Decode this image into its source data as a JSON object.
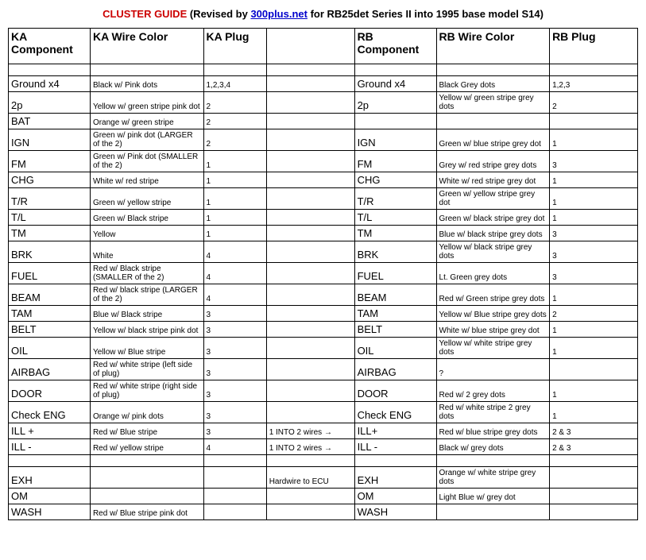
{
  "title": {
    "main": "CLUSTER GUIDE",
    "rev_prefix": " (Revised by ",
    "link": "300plus.net",
    "rev_suffix": " for RB25det Series II into 1995 base model S14)"
  },
  "columns": [
    "KA Component",
    "KA Wire Color",
    "KA Plug",
    "",
    "RB Component",
    "RB Wire Color",
    "RB Plug"
  ],
  "rows": [
    {
      "type": "spacer"
    },
    {
      "cells": [
        "Ground x4",
        "Black w/ Pink dots",
        "1,2,3,4",
        "",
        "Ground x4",
        "Black Grey dots",
        "1,2,3"
      ]
    },
    {
      "cells": [
        "2p",
        "Yellow w/ green stripe pink dot",
        "2",
        "",
        "2p",
        "Yellow w/ green stripe grey dots",
        "2"
      ]
    },
    {
      "cells": [
        "BAT",
        "Orange w/ green stripe",
        "2",
        "",
        "",
        "",
        ""
      ]
    },
    {
      "cells": [
        "IGN",
        "Green w/ pink dot (LARGER of the 2)",
        "2",
        "",
        "IGN",
        "Green w/ blue stripe grey dot",
        "1"
      ]
    },
    {
      "cells": [
        "FM",
        "Green w/ Pink dot (SMALLER of the 2)",
        "1",
        "",
        "FM",
        "Grey w/ red stripe grey dots",
        "3"
      ]
    },
    {
      "cells": [
        "CHG",
        "White w/ red stripe",
        "1",
        "",
        "CHG",
        "White w/ red stripe grey dot",
        "1"
      ]
    },
    {
      "cells": [
        "T/R",
        "Green w/ yellow stripe",
        "1",
        "",
        "T/R",
        "Green w/ yellow stripe grey dot",
        "1"
      ]
    },
    {
      "cells": [
        "T/L",
        "Green w/ Black stripe",
        "1",
        "",
        "T/L",
        "Green w/ black stripe grey dot",
        "1"
      ]
    },
    {
      "cells": [
        "TM",
        "Yellow",
        "1",
        "",
        "TM",
        "Blue w/ black stripe grey dots",
        "3"
      ]
    },
    {
      "cells": [
        "BRK",
        "White",
        "4",
        "",
        "BRK",
        "Yellow w/ black stripe grey dots",
        "3"
      ]
    },
    {
      "cells": [
        "FUEL",
        "Red w/ Black stripe (SMALLER of the 2)",
        "4",
        "",
        "FUEL",
        "Lt. Green grey dots",
        "3"
      ]
    },
    {
      "cells": [
        "BEAM",
        "Red w/ black stripe (LARGER of the 2)",
        "4",
        "",
        "BEAM",
        "Red w/ Green stripe grey dots",
        "1"
      ]
    },
    {
      "cells": [
        "TAM",
        "Blue w/ Black stripe",
        "3",
        "",
        "TAM",
        "Yellow w/ Blue stripe grey dots",
        "2"
      ]
    },
    {
      "cells": [
        "BELT",
        "Yellow w/ black stripe pink dot",
        "3",
        "",
        "BELT",
        "White w/ blue stripe grey dot",
        "1"
      ]
    },
    {
      "cells": [
        "OIL",
        "Yellow w/ Blue stripe",
        "3",
        "",
        "OIL",
        "Yellow w/ white stripe grey dots",
        "1"
      ]
    },
    {
      "cells": [
        "AIRBAG",
        "Red w/ white stripe (left side of plug)",
        "3",
        "",
        "AIRBAG",
        "?",
        ""
      ]
    },
    {
      "cells": [
        "DOOR",
        "Red w/ white stripe (right side of plug)",
        "3",
        "",
        "DOOR",
        "Red w/ 2 grey dots",
        "1"
      ]
    },
    {
      "cells": [
        "Check ENG",
        "Orange w/ pink dots",
        "3",
        "",
        "Check ENG",
        "Red w/ white stripe 2 grey dots",
        "1"
      ]
    },
    {
      "cells": [
        "ILL +",
        "Red w/ Blue stripe",
        "3",
        "1 INTO 2 wires →",
        "ILL+",
        "Red w/ blue stripe grey dots",
        "2 & 3"
      ]
    },
    {
      "cells": [
        "ILL -",
        "Red w/ yellow stripe",
        "4",
        "1 INTO 2 wires →",
        "ILL -",
        "Black w/ grey dots",
        "2 & 3"
      ]
    },
    {
      "type": "spacer"
    },
    {
      "cells": [
        "EXH",
        "",
        "",
        "Hardwire to ECU",
        "EXH",
        "Orange w/ white stripe grey dots",
        ""
      ]
    },
    {
      "cells": [
        "OM",
        "",
        "",
        "",
        "OM",
        "Light Blue w/ grey dot",
        ""
      ]
    },
    {
      "cells": [
        "WASH",
        "Red w/ Blue stripe pink dot",
        "",
        "",
        "WASH",
        "",
        ""
      ]
    }
  ]
}
